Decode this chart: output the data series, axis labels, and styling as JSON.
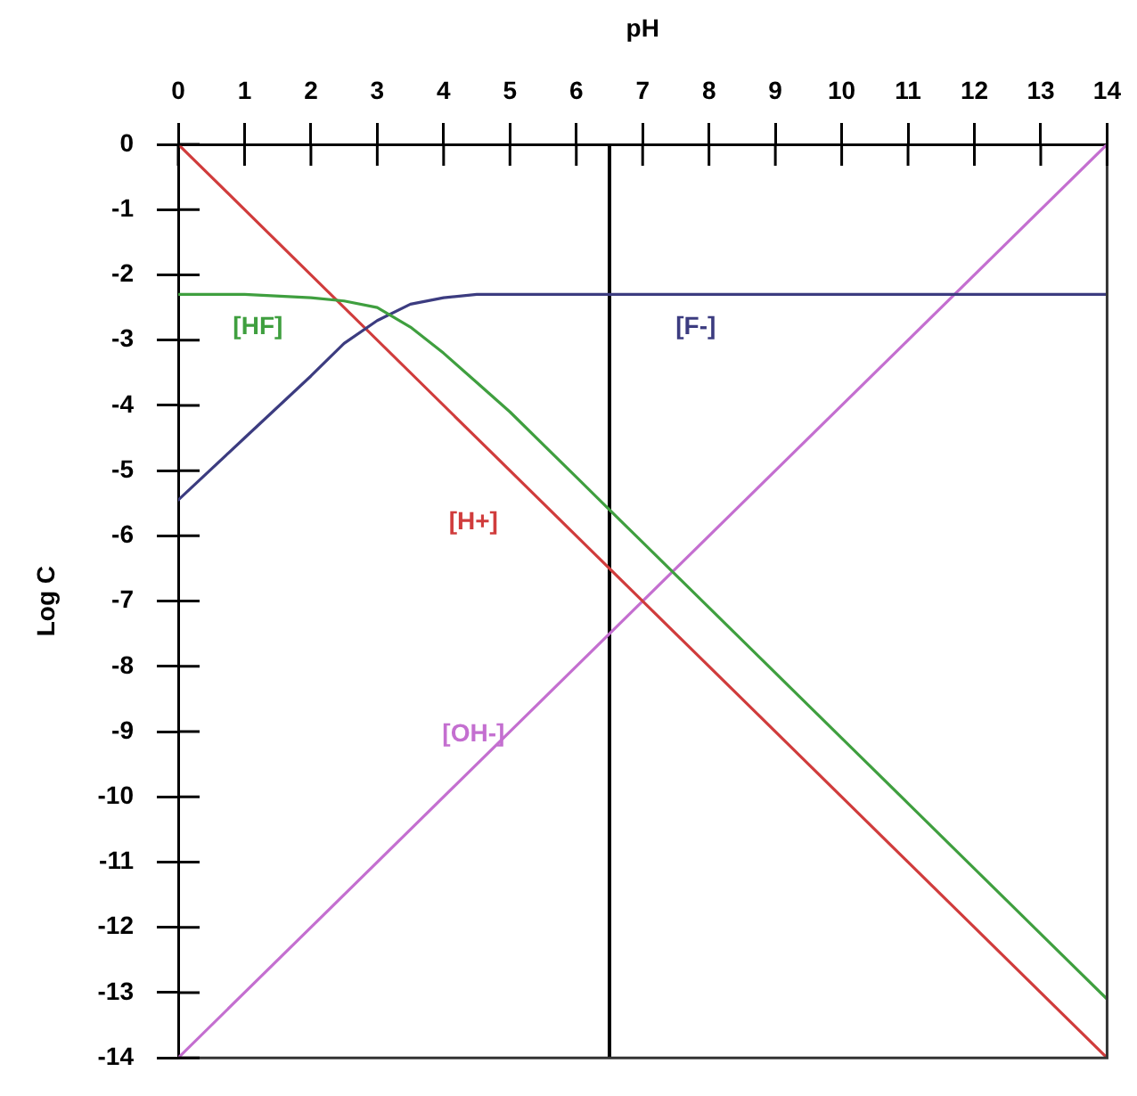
{
  "chart_data": {
    "type": "line",
    "xlabel": "pH",
    "ylabel": "Log C",
    "series": [
      {
        "name": "[HF]",
        "color": "#3f9f3f",
        "x": [
          0,
          1,
          2,
          2.5,
          3,
          3.5,
          4,
          4.5,
          5,
          6,
          6.5,
          7,
          8,
          9,
          10,
          11,
          12,
          13,
          14
        ],
        "values": [
          -2.3,
          -2.3,
          -2.35,
          -2.4,
          -2.5,
          -2.8,
          -3.2,
          -3.65,
          -4.1,
          -5.1,
          -5.6,
          -6.1,
          -7.1,
          -8.1,
          -9.1,
          -10.1,
          -11.1,
          -12.1,
          -13.1
        ]
      },
      {
        "name": "[F-]",
        "color": "#3c3c80",
        "x": [
          0,
          1,
          2,
          2.5,
          3,
          3.5,
          4,
          4.5,
          5,
          6,
          14
        ],
        "values": [
          -5.45,
          -4.5,
          -3.55,
          -3.05,
          -2.7,
          -2.45,
          -2.35,
          -2.3,
          -2.3,
          -2.3,
          -2.3
        ]
      },
      {
        "name": "[H+]",
        "color": "#d03c3c",
        "x": [
          0,
          14
        ],
        "values": [
          0,
          -14
        ]
      },
      {
        "name": "[OH-]",
        "color": "#c46fd0",
        "x": [
          0,
          14
        ],
        "values": [
          -14,
          0
        ]
      }
    ],
    "xlim": [
      0,
      14
    ],
    "xticks": [
      0,
      1,
      2,
      3,
      4,
      5,
      6,
      7,
      8,
      9,
      10,
      11,
      12,
      13,
      14
    ],
    "ylim": [
      -14,
      0
    ],
    "yticks": [
      0,
      -1,
      -2,
      -3,
      -4,
      -5,
      -6,
      -7,
      -8,
      -9,
      -10,
      -11,
      -12,
      -13,
      -14
    ],
    "ref_lines": [
      {
        "axis": "x",
        "value": 6.5,
        "color": "#000000"
      }
    ],
    "grid": false,
    "legend": false,
    "marker": "none",
    "line_style": "solid"
  }
}
